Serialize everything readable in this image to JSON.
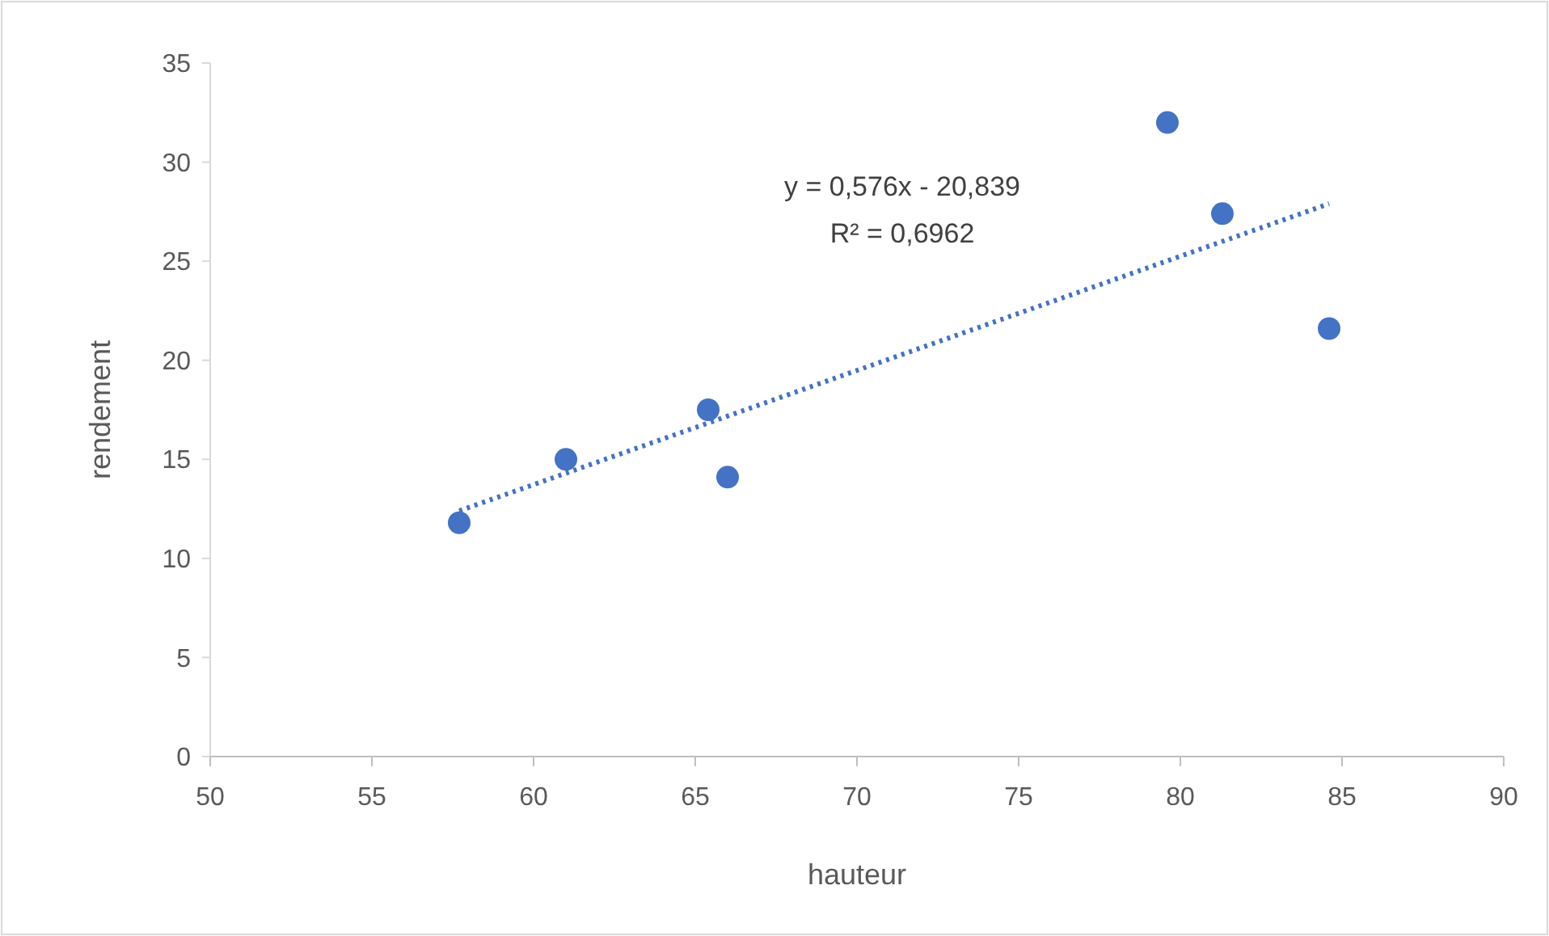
{
  "chart_data": {
    "type": "scatter",
    "xlabel": "hauteur",
    "ylabel": "rendement",
    "xlim": [
      50,
      90
    ],
    "xticks": [
      50,
      55,
      60,
      65,
      70,
      75,
      80,
      85,
      90
    ],
    "ylim": [
      0,
      35
    ],
    "yticks": [
      0,
      5,
      10,
      15,
      20,
      25,
      30,
      35
    ],
    "grid": false,
    "marker": "circle",
    "annotations": [
      "y = 0,576x - 20,839",
      "R² = 0,6962"
    ],
    "series": [
      {
        "color": "#4472c4",
        "x": [
          57.7,
          61.0,
          65.4,
          66.0,
          79.6,
          81.3,
          84.6
        ],
        "values": [
          11.8,
          15.0,
          17.5,
          14.1,
          32.0,
          27.4,
          21.6
        ]
      },
      {
        "type": "line",
        "color": "#4472c4",
        "line_style": "dotted",
        "marker": "none",
        "x": [
          57.7,
          84.6
        ],
        "values": [
          12.4,
          27.9
        ]
      }
    ]
  }
}
